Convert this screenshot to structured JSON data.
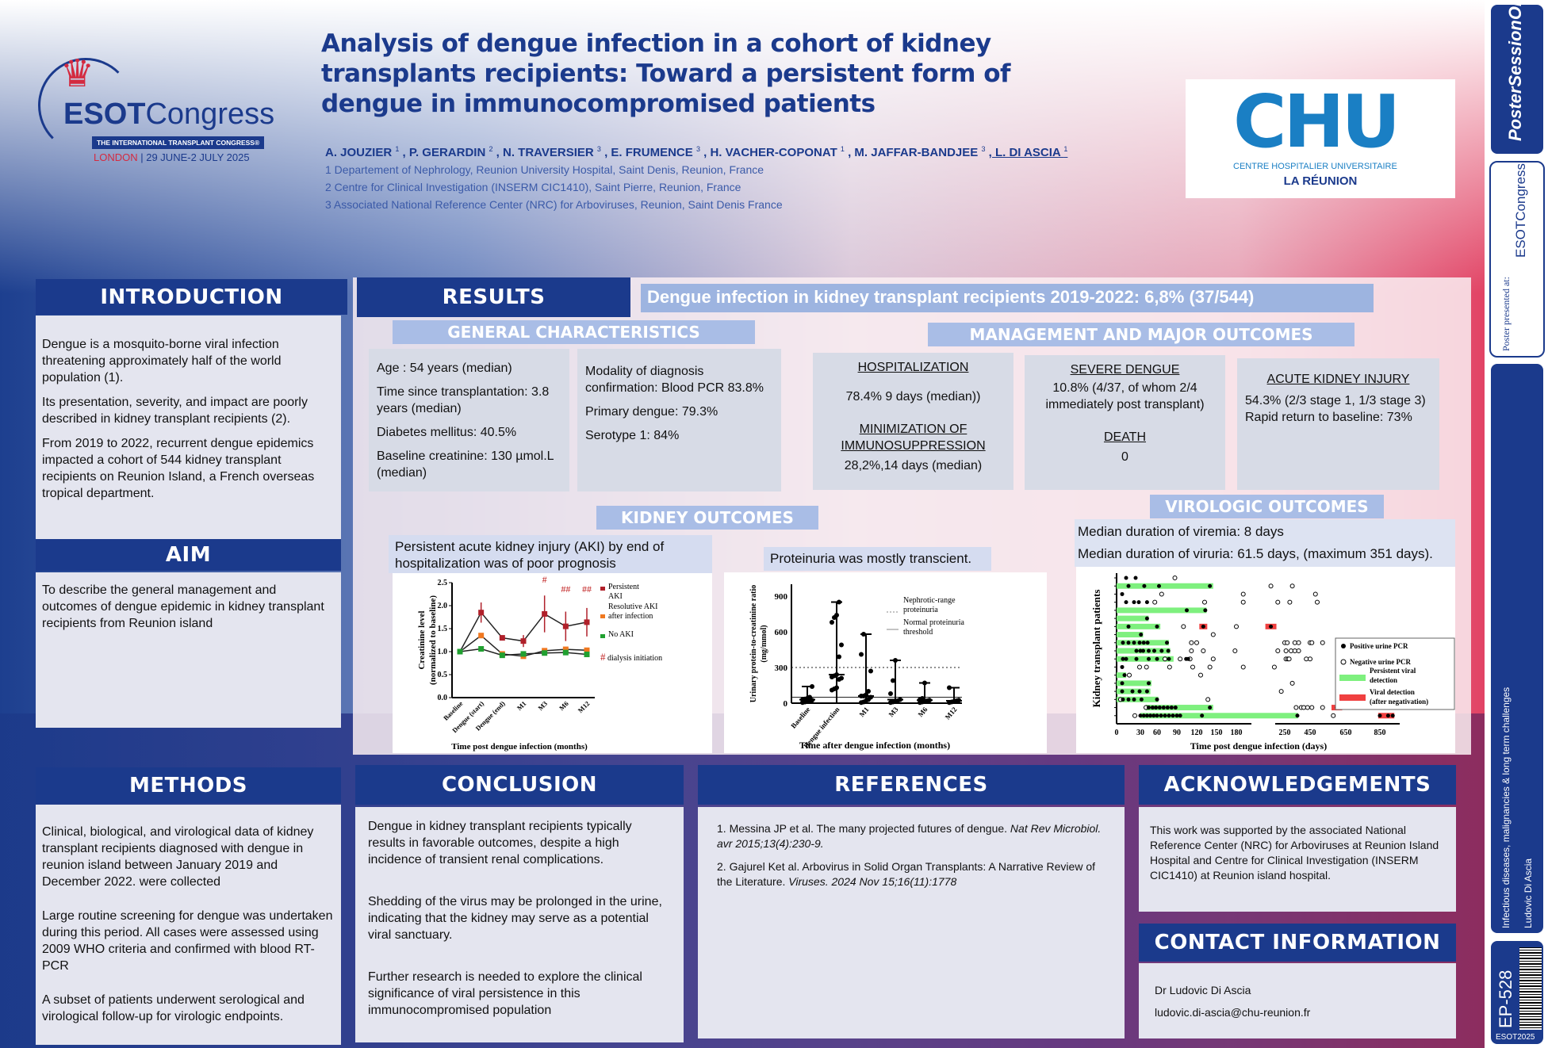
{
  "logo": {
    "crown": "crown-icon",
    "brand_bold": "ESOT",
    "brand_light": "Congress",
    "banner": "THE INTERNATIONAL TRANSPLANT CONGRESS®",
    "city": "LONDON",
    "dates": "| 29 JUNE-2 JULY 2025"
  },
  "header": {
    "title": "Analysis of dengue infection in a cohort of kidney transplants recipients: Toward a persistent form of dengue in immunocompromised patients",
    "authors": [
      {
        "name": "A. JOUZIER",
        "sup": "1"
      },
      {
        "name": ", P. GERARDIN",
        "sup": "2"
      },
      {
        "name": ", N. TRAVERSIER",
        "sup": "3"
      },
      {
        "name": ", E. FRUMENCE",
        "sup": "3"
      },
      {
        "name": ", H. VACHER-COPONAT",
        "sup": "1"
      },
      {
        "name": ", M. JAFFAR-BANDJEE",
        "sup": "3"
      },
      {
        "name": ", L. DI ASCIA",
        "sup": "1"
      }
    ],
    "affiliations": [
      "1 Departement of Nephrology, Reunion University Hospital, Saint Denis, Reunion, France",
      "2 Centre for Clinical Investigation (INSERM CIC1410), Saint Pierre, Reunion, France",
      "3 Associated National Reference Center (NRC) for Arboviruses, Reunion, Saint Denis France"
    ]
  },
  "chu_logo": {
    "mark": "CHU",
    "line1": "CENTRE HOSPITALIER UNIVERSITAIRE",
    "line2": "LA RÉUNION"
  },
  "introduction": {
    "title": "INTRODUCTION",
    "paragraphs": [
      "Dengue is a mosquito-borne viral infection threatening approximately half of the world population (1).",
      "Its presentation, severity, and impact are poorly described in kidney transplant recipients (2).",
      "From 2019 to 2022, recurrent dengue epidemics impacted a cohort of 544 kidney transplant recipients on Reunion Island, a French overseas tropical department."
    ]
  },
  "aim": {
    "title": "AIM",
    "text": "To describe the general management and outcomes of dengue epidemic in kidney transplant recipients from Reunion island"
  },
  "methods": {
    "title": "METHODS",
    "paragraphs": [
      "Clinical, biological, and virological data of kidney transplant recipients diagnosed with dengue  in reunion island between January 2019 and December 2022. were collected",
      "Large routine screening for dengue was undertaken during this period. All cases were assessed using 2009 WHO criteria and confirmed with blood RT-PCR",
      "A subset of patients underwent serological and virological follow-up for virologic endpoints."
    ]
  },
  "results": {
    "title": "RESULTS",
    "banner": "Dengue infection in kidney transplant recipients 2019-2022: 6,8% (37/544)",
    "general": {
      "title": "GENERAL CHARACTERISTICS",
      "box1": [
        "Age : 54 years (median)",
        "Time since transplantation: 3.8 years (median)",
        "Diabetes mellitus: 40.5%",
        "Baseline creatinine: 130 µmol.L (median)"
      ],
      "box2": [
        "Modality of diagnosis confirmation: Blood PCR 83.8%",
        "Primary dengue: 79.3%",
        "Serotype 1: 84%"
      ]
    },
    "management": {
      "title": "MANAGEMENT AND MAJOR OUTCOMES",
      "hosp_title": "HOSPITALIZATION",
      "hosp_value": "78.4% 9 days (median))",
      "immuno_title": "MINIMIZATION OF IMMUNOSUPPRESSION",
      "immuno_value": "28,2%,14 days (median)",
      "severe_title": "SEVERE DENGUE",
      "severe_value": "10.8% (4/37,  of whom 2/4 immediately post transplant)",
      "death_title": "DEATH",
      "death_value": "0",
      "aki_title": "ACUTE KIDNEY INJURY",
      "aki_value": "54.3% (2/3 stage 1, 1/3 stage 3)",
      "aki_value2": "Rapid return to baseline: 73%"
    },
    "kidney": {
      "title": "KIDNEY OUTCOMES",
      "caption1": "Persistent acute kidney injury (AKI) by end of hospitalization was of poor prognosis",
      "caption2": "Proteinuria was mostly transcient."
    },
    "virologic": {
      "title": "VIROLOGIC OUTCOMES",
      "line1": "Median duration of viremia: 8 days",
      "line2": "Median duration of viruria: 61.5 days, (maximum 351 days)."
    }
  },
  "chart_data": [
    {
      "type": "line",
      "ylabel": "Creatinine level (normalized to baseline)",
      "xlabel": "Time post dengue infection (months)",
      "ylim": [
        0,
        2.5
      ],
      "yticks": [
        "0.0",
        "0.5",
        "1.0",
        "1.5",
        "2.0",
        "2.5"
      ],
      "categories": [
        "Baseline",
        "Dengue (start)",
        "Dengue (end)",
        "M1",
        "M3",
        "M6",
        "M12"
      ],
      "series": [
        {
          "name": "Persistent AKI",
          "color": "#b0202a",
          "values": [
            1.0,
            1.85,
            1.3,
            1.23,
            1.82,
            1.55,
            1.64
          ],
          "errors": [
            0,
            0.22,
            0.04,
            0.13,
            0.4,
            0.32,
            0.31
          ]
        },
        {
          "name": "Resolutive AKI after infection",
          "color": "#f07820",
          "values": [
            1.0,
            1.35,
            0.95,
            0.9,
            1.02,
            1.05,
            1.03
          ]
        },
        {
          "name": "No AKI",
          "color": "#20a030",
          "values": [
            1.0,
            1.06,
            0.92,
            0.95,
            0.97,
            0.98,
            0.94
          ]
        }
      ],
      "annotations": [
        {
          "category": "M3",
          "text": "#"
        },
        {
          "category": "M6",
          "text": "##"
        },
        {
          "category": "M12",
          "text": "##"
        }
      ],
      "annotation_legend": "dialysis initiation",
      "annotation_mark": "#"
    },
    {
      "type": "scatter",
      "ylabel": "Urinary protein-to-creatinine ratio (mg/mmol)",
      "xlabel": "Time after dengue infection (months)",
      "ylim": [
        0,
        1000
      ],
      "yticks": [
        "0",
        "300",
        "600",
        "900"
      ],
      "categories": [
        "Baseline",
        "Dengue infection",
        "M1",
        "M3",
        "M6",
        "M12"
      ],
      "points": [
        [
          5,
          10,
          15,
          20,
          25,
          30,
          35,
          40,
          50,
          140
        ],
        [
          110,
          120,
          130,
          200,
          210,
          220,
          230,
          240,
          390,
          490,
          680,
          720,
          740,
          850
        ],
        [
          5,
          10,
          20,
          30,
          50,
          60,
          60,
          70,
          100,
          270,
          410,
          580
        ],
        [
          5,
          10,
          15,
          20,
          30,
          80,
          190,
          360
        ],
        [
          5,
          10,
          15,
          20,
          25,
          30,
          40,
          170
        ],
        [
          5,
          10,
          15,
          20,
          25,
          130
        ]
      ],
      "reference_lines": [
        {
          "value": 300,
          "style": "dotted",
          "label": "Nephrotic-range proteinuria"
        },
        {
          "value": 50,
          "style": "solid",
          "label": "Normal proteinuria threshold"
        }
      ]
    },
    {
      "type": "swimmer",
      "ylabel": "Kidney transplant patients",
      "xlabel": "Time post dengue infection (days)",
      "xticks": [
        0,
        30,
        60,
        90,
        120,
        150,
        180,
        250,
        450,
        650,
        850
      ],
      "legend": [
        "Positive urine PCR",
        "Negative urine PCR",
        "Persistent viral detection",
        "Viral detection (after negativation)"
      ],
      "rows": [
        {
          "green": null,
          "pos": [
            12,
            24
          ],
          "neg": [
            87
          ],
          "red": []
        },
        {
          "green": [
            0,
            145
          ],
          "pos": [
            15,
            37,
            63,
            140
          ],
          "neg": [
            230,
            310
          ],
          "red": []
        },
        {
          "green": null,
          "pos": [
            7
          ],
          "neg": [
            67,
            190,
            480
          ],
          "red": []
        },
        {
          "green": null,
          "pos": [
            12,
            22,
            28,
            42
          ],
          "neg": [
            56,
            132,
            190,
            240,
            290,
            490
          ],
          "red": []
        },
        {
          "green": [
            0,
            135
          ],
          "pos": [
            105,
            133
          ],
          "neg": [],
          "red": []
        },
        {
          "green": [
            0,
            45
          ],
          "pos": [
            42
          ],
          "neg": [],
          "red": []
        },
        {
          "green": [
            0,
            65
          ],
          "pos": [
            15,
            60,
            130,
            230
          ],
          "neg": [
            100,
            180
          ],
          "red": [
            [
              124,
              136
            ],
            [
              222,
              238
            ]
          ]
        },
        {
          "green": [
            0,
            35
          ],
          "pos": [
            31
          ],
          "neg": [
            145
          ],
          "red": []
        },
        {
          "green": [
            0,
            78
          ],
          "pos": [
            8,
            15,
            22,
            29,
            36,
            43,
            75
          ],
          "neg": [
            112,
            120,
            250,
            270,
            330,
            360,
            450,
            460,
            520
          ],
          "red": []
        },
        {
          "green": [
            0,
            80
          ],
          "pos": [
            25,
            30,
            35,
            45,
            55,
            67,
            77
          ],
          "neg": [
            112,
            130,
            178,
            240,
            260,
            300,
            330,
            360
          ],
          "red": []
        },
        {
          "green": [
            0,
            85
          ],
          "pos": [
            8,
            12,
            25,
            45,
            60,
            78,
            104,
            107
          ],
          "neg": [
            72,
            95,
            110,
            145,
            260,
            275,
            285,
            420,
            450
          ],
          "red": []
        },
        {
          "green": null,
          "pos": [
            7
          ],
          "neg": [
            29,
            41,
            79,
            114,
            140,
            190,
            235
          ],
          "red": []
        },
        {
          "green": [
            0,
            12
          ],
          "pos": [
            10
          ],
          "neg": [
            16,
            126
          ],
          "red": []
        },
        {
          "green": [
            0,
            50
          ],
          "pos": [
            7,
            45
          ],
          "neg": [
            310
          ],
          "red": []
        },
        {
          "green": [
            0,
            48
          ],
          "pos": [
            7,
            20,
            29,
            42
          ],
          "neg": [
            245
          ],
          "red": []
        },
        {
          "green": [
            0,
            62
          ],
          "pos": [
            8,
            15,
            22,
            32,
            60
          ],
          "neg": [
            5,
            137
          ],
          "red": []
        },
        {
          "green": [
            40,
            145
          ],
          "pos": [
            45,
            52,
            58,
            64,
            70,
            76,
            82,
            88,
            140,
            600
          ],
          "neg": [
            40,
            340,
            380,
            400,
            430,
            460,
            520,
            760,
            850
          ],
          "red": [
            [
              570,
              630
            ]
          ]
        },
        {
          "green": [
            30,
            355
          ],
          "pos": [
            30,
            36,
            42,
            48,
            54,
            60,
            66,
            72,
            78,
            84,
            90,
            95,
            128,
            350,
            850,
            930,
            975
          ],
          "neg": [
            23,
            580
          ],
          "red": [
            [
              840,
              990
            ]
          ]
        }
      ]
    }
  ],
  "conclusion": {
    "title": "CONCLUSION",
    "paragraphs": [
      "Dengue in kidney transplant recipients typically results in favorable outcomes, despite a high incidence of transient renal complications.",
      "Shedding of the virus may be prolonged in the urine, indicating that the kidney may serve as a potential viral sanctuary.",
      "Further research is needed to explore the clinical significance of viral persistence in this immunocompromised population"
    ]
  },
  "references": {
    "title": "REFERENCES",
    "items": [
      {
        "text": "1. Messina JP et al. The many projected futures of dengue. ",
        "journal": "Nat Rev Microbiol. avr 2015;13(4):230-9."
      },
      {
        "text": "2. Gajurel Ket al. Arbovirus in Solid Organ Transplants: A Narrative Review of the Literature. ",
        "journal": "Viruses. 2024 Nov 15;16(11):1778"
      }
    ]
  },
  "acknowledgements": {
    "title": "ACKNOWLEDGEMENTS",
    "text": "This work was supported by the associated National Reference Center (NRC) for Arboviruses at Reunion Island Hospital and Centre for Clinical Investigation (INSERM CIC1410) at Reunion island hospital."
  },
  "contact": {
    "title": "CONTACT INFORMATION",
    "name": "Dr Ludovic Di Ascia",
    "email": "ludovic.di-ascia@chu-reunion.fr"
  },
  "sidebar": {
    "pso": "PosterSessionOnline",
    "presented": "Poster presented at:",
    "esot": "ESOTCongress",
    "topic": "Infectious diseases, malignancies & long term challenges",
    "author": "Ludovic Di Ascia",
    "code": "EP-528",
    "event": "ESOT2025"
  }
}
